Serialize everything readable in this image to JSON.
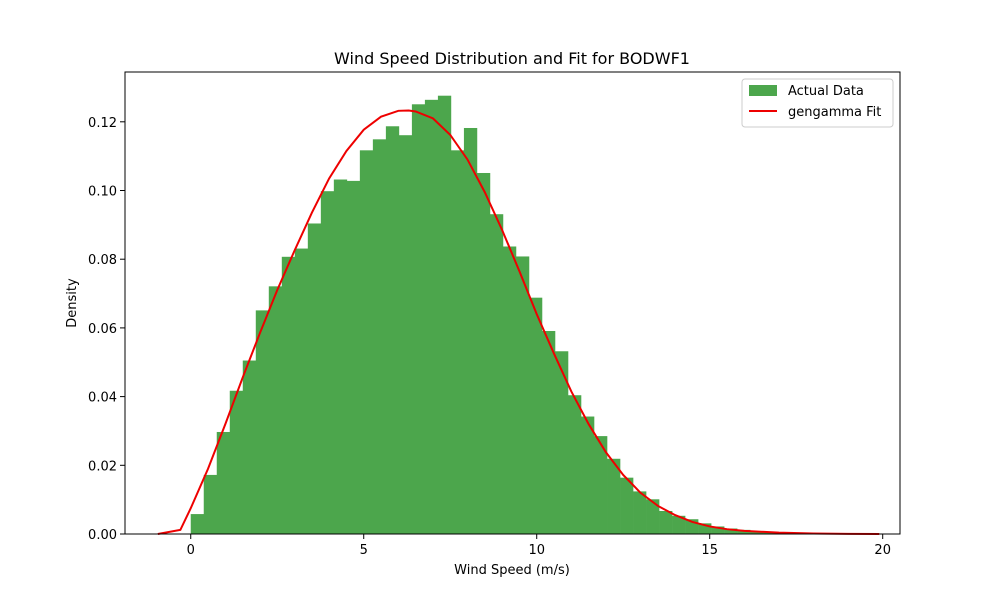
{
  "chart_data": {
    "type": "bar",
    "title": "Wind Speed Distribution and Fit for BODWF1",
    "xlabel": "Wind Speed (m/s)",
    "ylabel": "Density",
    "xlim": [
      -1.9,
      20.5
    ],
    "ylim": [
      0,
      0.1345
    ],
    "xticks": [
      0,
      5,
      10,
      15,
      20
    ],
    "yticks": [
      0.0,
      0.02,
      0.04,
      0.06,
      0.08,
      0.1,
      0.12
    ],
    "xtick_labels": [
      "0",
      "5",
      "10",
      "15",
      "20"
    ],
    "ytick_labels": [
      "0.00",
      "0.02",
      "0.04",
      "0.06",
      "0.08",
      "0.10",
      "0.12"
    ],
    "legend_position": "top-right",
    "grid": false,
    "colors": {
      "histogram": "#4ca64c",
      "fit": "#ee0000"
    },
    "histogram": {
      "name": "Actual Data",
      "bin_start": 0.0,
      "bin_width": 0.376,
      "values": [
        0.0058,
        0.0172,
        0.0297,
        0.0417,
        0.0505,
        0.0651,
        0.0721,
        0.0807,
        0.0831,
        0.0904,
        0.0998,
        0.1032,
        0.1028,
        0.1117,
        0.1149,
        0.1187,
        0.1161,
        0.1251,
        0.1264,
        0.1276,
        0.1117,
        0.1182,
        0.1051,
        0.0931,
        0.0837,
        0.0808,
        0.0688,
        0.0591,
        0.0532,
        0.0404,
        0.0342,
        0.0285,
        0.0219,
        0.0164,
        0.0124,
        0.0101,
        0.0067,
        0.0053,
        0.0043,
        0.0031,
        0.0022,
        0.0016,
        0.0012,
        0.0008,
        0.0006,
        0.0004,
        0.0003,
        0.0002,
        0.0002,
        0.0001,
        0.0001,
        0.0001,
        5e-05
      ]
    },
    "fit": {
      "name": "gengamma Fit",
      "x": [
        -0.95,
        -0.3,
        0,
        0.5,
        1,
        1.5,
        2,
        2.5,
        3,
        3.5,
        4,
        4.5,
        5,
        5.5,
        6,
        6.3,
        6.5,
        7,
        7.5,
        8,
        8.5,
        9,
        9.5,
        10,
        10.5,
        11,
        11.5,
        12,
        12.5,
        13,
        13.5,
        14,
        14.5,
        15,
        15.5,
        16,
        17,
        18,
        19,
        19.9
      ],
      "y": [
        0,
        0.0012,
        0.0075,
        0.019,
        0.032,
        0.0455,
        0.0585,
        0.071,
        0.0825,
        0.0935,
        0.1035,
        0.1115,
        0.1177,
        0.1215,
        0.1232,
        0.1233,
        0.123,
        0.121,
        0.1162,
        0.109,
        0.0995,
        0.0885,
        0.0765,
        0.064,
        0.0525,
        0.0415,
        0.032,
        0.0238,
        0.0172,
        0.012,
        0.0082,
        0.0055,
        0.0035,
        0.0022,
        0.0014,
        0.0009,
        0.0004,
        0.00015,
        5e-05,
        0
      ]
    }
  }
}
